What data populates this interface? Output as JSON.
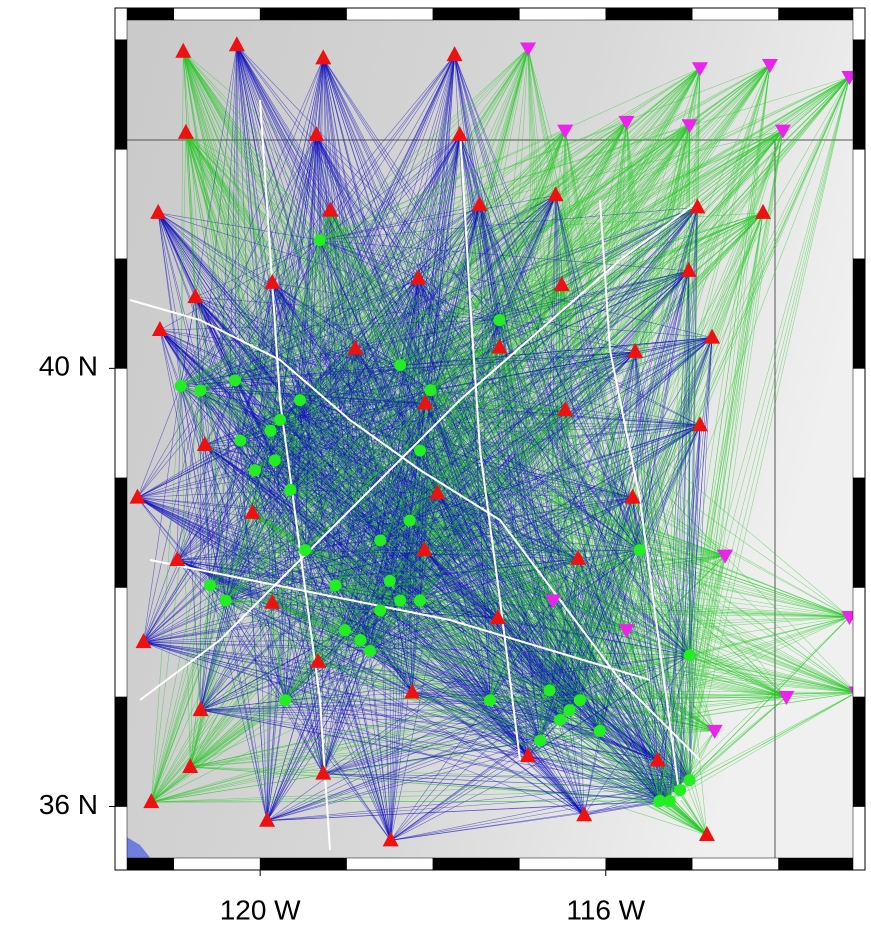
{
  "map": {
    "lon_range": [
      -121.68,
      -113.0
    ],
    "lat_range": [
      35.42,
      43.29
    ],
    "lat_ticks": [
      {
        "value": 40,
        "label": "40 N"
      },
      {
        "value": 36,
        "label": "36 N"
      }
    ],
    "lon_ticks": [
      {
        "value": -120,
        "label": "120 W"
      },
      {
        "value": -116,
        "label": "116 W"
      }
    ],
    "stations": [
      [
        -120.89,
        42.89
      ],
      [
        -120.27,
        42.95
      ],
      [
        -119.27,
        42.83
      ],
      [
        -117.75,
        42.86
      ],
      [
        -120.86,
        42.15
      ],
      [
        -119.35,
        42.13
      ],
      [
        -117.69,
        42.13
      ],
      [
        -121.18,
        41.42
      ],
      [
        -119.19,
        41.44
      ],
      [
        -117.46,
        41.49
      ],
      [
        -116.58,
        41.58
      ],
      [
        -114.94,
        41.47
      ],
      [
        -114.18,
        41.42
      ],
      [
        -120.75,
        40.65
      ],
      [
        -119.86,
        40.78
      ],
      [
        -118.17,
        40.82
      ],
      [
        -116.51,
        40.76
      ],
      [
        -115.04,
        40.89
      ],
      [
        -121.16,
        40.35
      ],
      [
        -118.9,
        40.18
      ],
      [
        -117.23,
        40.19
      ],
      [
        -115.66,
        40.15
      ],
      [
        -114.77,
        40.28
      ],
      [
        -118.09,
        39.68
      ],
      [
        -116.47,
        39.62
      ],
      [
        -114.91,
        39.48
      ],
      [
        -120.64,
        39.3
      ],
      [
        -121.42,
        38.82
      ],
      [
        -120.09,
        38.68
      ],
      [
        -117.95,
        38.86
      ],
      [
        -115.69,
        38.82
      ],
      [
        -120.96,
        38.25
      ],
      [
        -119.86,
        37.86
      ],
      [
        -118.1,
        38.34
      ],
      [
        -116.32,
        38.26
      ],
      [
        -121.35,
        37.5
      ],
      [
        -119.33,
        37.32
      ],
      [
        -117.25,
        37.72
      ],
      [
        -120.69,
        36.88
      ],
      [
        -118.24,
        37.04
      ],
      [
        -120.81,
        36.36
      ],
      [
        -119.27,
        36.3
      ],
      [
        -116.9,
        36.46
      ],
      [
        -115.4,
        36.42
      ],
      [
        -121.26,
        36.04
      ],
      [
        -119.92,
        35.87
      ],
      [
        -118.49,
        35.69
      ],
      [
        -116.25,
        35.92
      ],
      [
        -114.83,
        35.74
      ]
    ],
    "stations_inverted": [
      [
        -116.9,
        42.92
      ],
      [
        -114.91,
        42.74
      ],
      [
        -114.1,
        42.77
      ],
      [
        -113.18,
        42.66
      ],
      [
        -116.47,
        42.17
      ],
      [
        -115.76,
        42.25
      ],
      [
        -115.03,
        42.22
      ],
      [
        -113.95,
        42.17
      ],
      [
        -114.62,
        38.29
      ],
      [
        -116.61,
        37.88
      ],
      [
        -115.76,
        37.61
      ],
      [
        -113.18,
        37.73
      ],
      [
        -113.91,
        37.0
      ],
      [
        -113.1,
        37.04
      ],
      [
        -114.74,
        36.69
      ]
    ],
    "events": [
      [
        -120.23,
        39.34
      ],
      [
        -119.88,
        39.43
      ],
      [
        -119.77,
        39.53
      ],
      [
        -119.83,
        39.16
      ],
      [
        -120.06,
        39.07
      ],
      [
        -119.65,
        38.89
      ],
      [
        -120.69,
        39.8
      ],
      [
        -120.29,
        39.89
      ],
      [
        -119.54,
        39.71
      ],
      [
        -119.02,
        37.61
      ],
      [
        -118.84,
        37.52
      ],
      [
        -118.61,
        37.79
      ],
      [
        -118.5,
        38.06
      ],
      [
        -118.73,
        37.42
      ],
      [
        -119.13,
        38.02
      ],
      [
        -118.38,
        37.88
      ],
      [
        -118.15,
        37.88
      ],
      [
        -118.61,
        38.43
      ],
      [
        -118.15,
        39.25
      ],
      [
        -118.38,
        40.03
      ],
      [
        -117.23,
        40.44
      ],
      [
        -116.42,
        36.88
      ],
      [
        -116.53,
        36.79
      ],
      [
        -116.3,
        36.97
      ],
      [
        -116.65,
        37.06
      ],
      [
        -116.07,
        36.69
      ],
      [
        -116.76,
        36.6
      ],
      [
        -117.34,
        36.97
      ],
      [
        -115.14,
        36.15
      ],
      [
        -115.26,
        36.05
      ],
      [
        -115.03,
        36.24
      ],
      [
        -115.38,
        36.05
      ],
      [
        -115.61,
        38.34
      ],
      [
        -115.03,
        37.38
      ],
      [
        -119.31,
        41.17
      ],
      [
        -119.71,
        36.97
      ],
      [
        -118.27,
        38.61
      ],
      [
        -119.48,
        38.34
      ],
      [
        -120.58,
        38.02
      ],
      [
        -120.4,
        37.88
      ],
      [
        -120.92,
        39.84
      ],
      [
        -118.03,
        39.8
      ]
    ]
  }
}
